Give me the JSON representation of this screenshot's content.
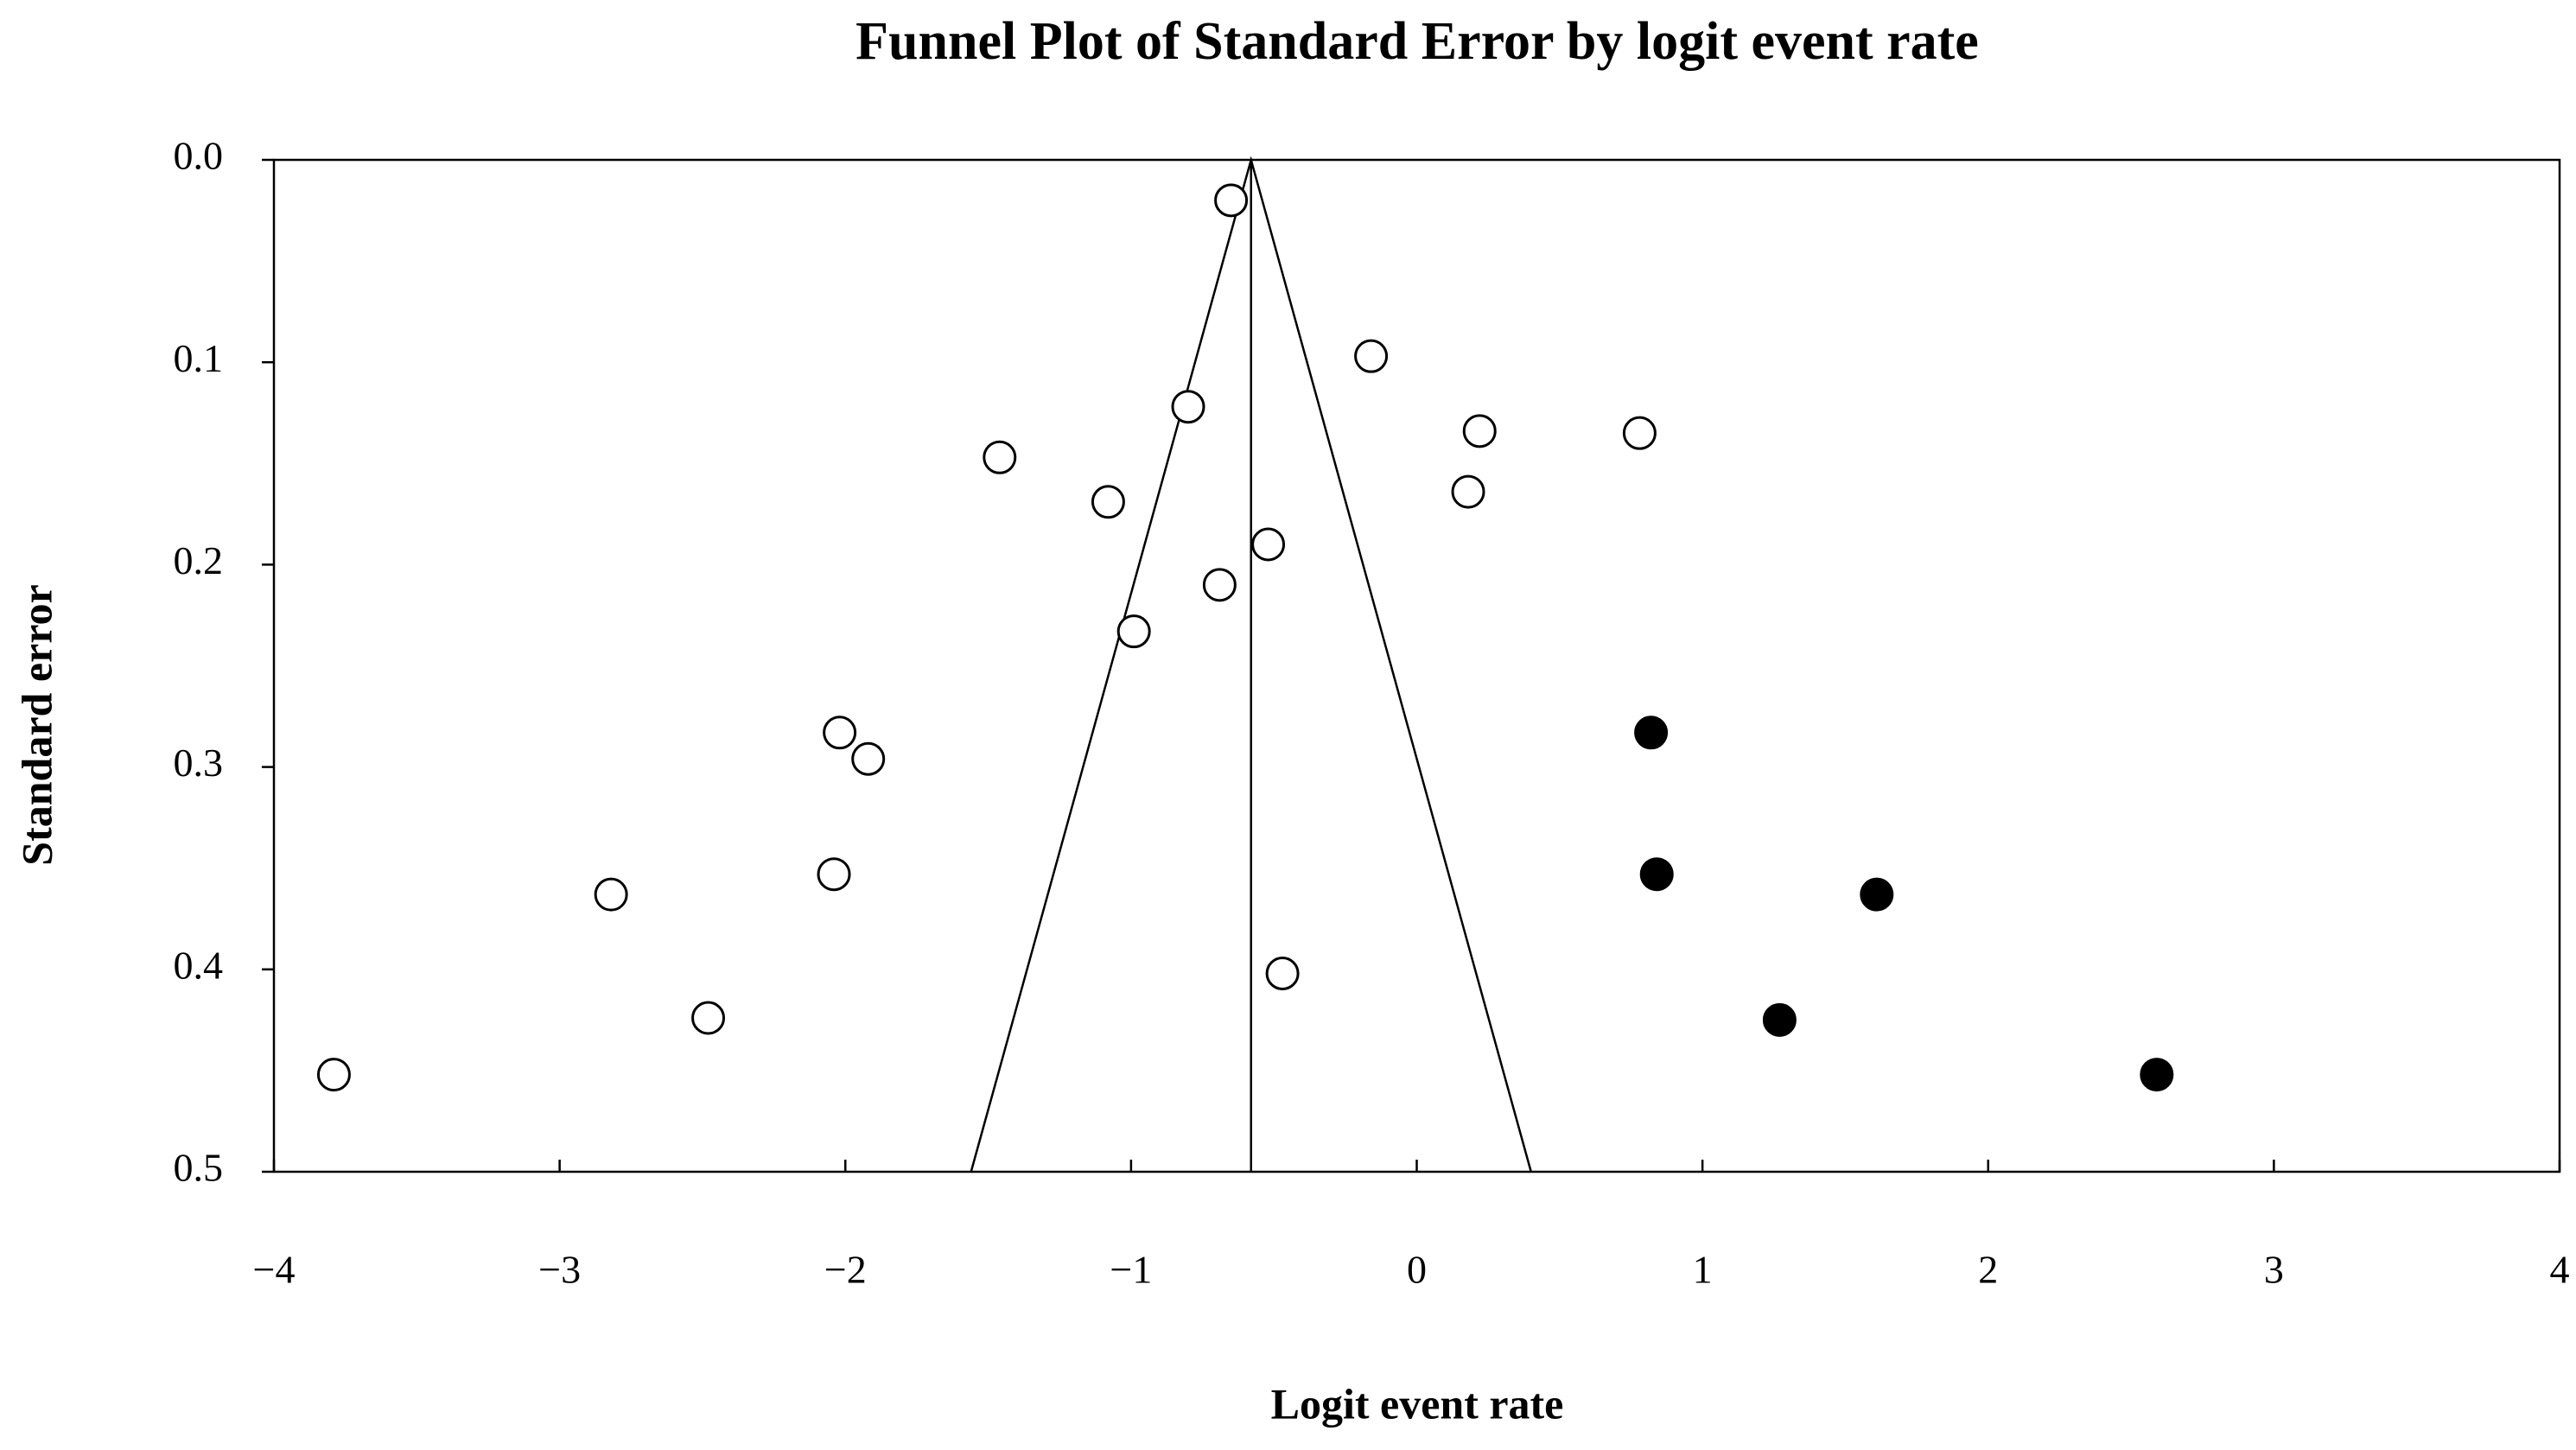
{
  "chart_data": {
    "type": "scatter",
    "title": "Funnel Plot of Standard Error by logit event rate",
    "x_label": "Logit event rate",
    "y_label": "Standard error",
    "xlim": [
      -4,
      4
    ],
    "ylim": [
      0.5,
      0
    ],
    "y_inverted": true,
    "xticks": [
      {
        "value": -4,
        "label": "−4"
      },
      {
        "value": -3,
        "label": "−3"
      },
      {
        "value": -2,
        "label": "−2"
      },
      {
        "value": -1,
        "label": "−1"
      },
      0,
      1,
      2,
      3,
      4
    ],
    "yticks": [
      {
        "value": 0,
        "label": "0.0"
      },
      0.1,
      0.2,
      0.3,
      0.4,
      0.5
    ],
    "center_line": -0.58,
    "funnel": {
      "x": [
        -1.56,
        -0.58,
        0.4
      ],
      "y": [
        0.5,
        0,
        0.5
      ],
      "color": "#000000"
    },
    "series": [
      {
        "color": "#000000",
        "filled": false,
        "x": [
          -0.65,
          -0.16,
          -0.8,
          0.22,
          0.78,
          -1.46,
          0.18,
          -1.08,
          -0.52,
          -0.69,
          -0.99,
          -2.02,
          -1.92,
          -2.04,
          -2.82,
          -0.47,
          -2.48,
          -3.79
        ],
        "values": [
          0.02,
          0.097,
          0.122,
          0.134,
          0.135,
          0.147,
          0.164,
          0.169,
          0.19,
          0.21,
          0.233,
          0.283,
          0.296,
          0.353,
          0.363,
          0.402,
          0.424,
          0.452
        ]
      },
      {
        "color": "#000000",
        "filled": true,
        "x": [
          0.82,
          0.84,
          1.61,
          1.27,
          2.59
        ],
        "values": [
          0.283,
          0.353,
          0.363,
          0.425,
          0.452
        ]
      }
    ]
  }
}
